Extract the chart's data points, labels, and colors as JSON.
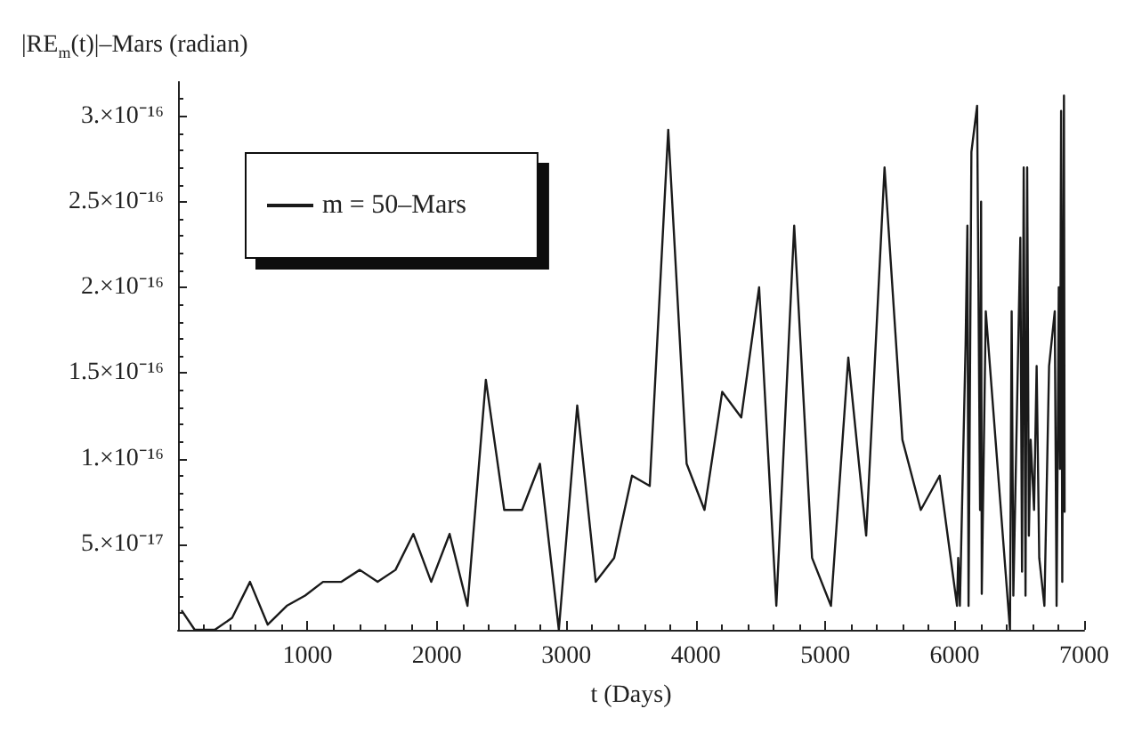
{
  "chart_data": {
    "type": "line",
    "ylabel": "|RE$_{m}$(t)|–Mars (radian)",
    "xlabel": "t (Days)",
    "xlim": [
      0,
      7000
    ],
    "xticks": [
      1000,
      2000,
      3000,
      4000,
      5000,
      6000,
      7000
    ],
    "ylim": [
      0,
      3.2e-16
    ],
    "yticks": [
      {
        "value": 5e-17,
        "label": "5.×10⁻¹⁷"
      },
      {
        "value": 1e-16,
        "label": "1.×10⁻¹⁶"
      },
      {
        "value": 1.5e-16,
        "label": "1.5×10⁻¹⁶"
      },
      {
        "value": 2e-16,
        "label": "2.×10⁻¹⁶"
      },
      {
        "value": 2.5e-16,
        "label": "2.5×10⁻¹⁶"
      },
      {
        "value": 3e-16,
        "label": "3.×10⁻¹⁶"
      }
    ],
    "grid": false,
    "legend": "top left",
    "marker": "none",
    "line_style": "solid",
    "series": [
      {
        "name": "m = 50–Mars",
        "color": "#1a1a1a",
        "x": [
          31,
          129,
          284,
          418,
          556,
          693,
          840,
          982,
          1120,
          1262,
          1404,
          1542,
          1680,
          1818,
          1956,
          2098,
          2236,
          2378,
          2520,
          2658,
          2796,
          2942,
          3084,
          3227,
          3369,
          3507,
          3644,
          3787,
          3929,
          4067,
          4204,
          4351,
          4489,
          4622,
          4760,
          4898,
          5044,
          5178,
          5316,
          5458,
          5596,
          5738,
          5884,
          6018,
          6027,
          6040,
          6084,
          6098,
          6107,
          6129,
          6173,
          6196,
          6204,
          6209,
          6240,
          6427,
          6440,
          6453,
          6507,
          6520,
          6533,
          6547,
          6560,
          6573,
          6587,
          6613,
          6633,
          6653,
          6693,
          6729,
          6773,
          6787,
          6804,
          6813,
          6822,
          6831,
          6844,
          6849
        ],
        "values": [
          1.1e-17,
          0,
          0,
          7e-18,
          2.8e-17,
          3e-18,
          1.4e-17,
          2e-17,
          2.8e-17,
          2.8e-17,
          3.5e-17,
          2.8e-17,
          3.5e-17,
          5.6e-17,
          2.8e-17,
          5.6e-17,
          1.4e-17,
          1.46e-16,
          7e-17,
          7e-17,
          9.7e-17,
          0,
          1.31e-16,
          2.8e-17,
          4.2e-17,
          9e-17,
          8.4e-17,
          2.92e-16,
          9.7e-17,
          7e-17,
          1.39e-16,
          1.24e-16,
          2e-16,
          1.4e-17,
          2.36e-16,
          4.2e-17,
          1.4e-17,
          1.59e-16,
          5.5e-17,
          2.7e-16,
          1.11e-16,
          7e-17,
          9e-17,
          1.4e-17,
          4.2e-17,
          1.4e-17,
          1.66e-16,
          2.36e-16,
          1.4e-17,
          2.79e-16,
          3.06e-16,
          7e-17,
          2.5e-16,
          2.1e-17,
          1.86e-16,
          0,
          1.86e-16,
          2e-17,
          2.29e-16,
          3.4e-17,
          2.7e-16,
          2e-17,
          2.7e-16,
          5.5e-17,
          1.11e-16,
          7e-17,
          1.54e-16,
          4.2e-17,
          1.4e-17,
          1.54e-16,
          1.86e-16,
          1.4e-17,
          2e-16,
          9.4e-17,
          3.03e-16,
          2.8e-17,
          3.12e-16,
          6.9e-17
        ]
      }
    ]
  }
}
